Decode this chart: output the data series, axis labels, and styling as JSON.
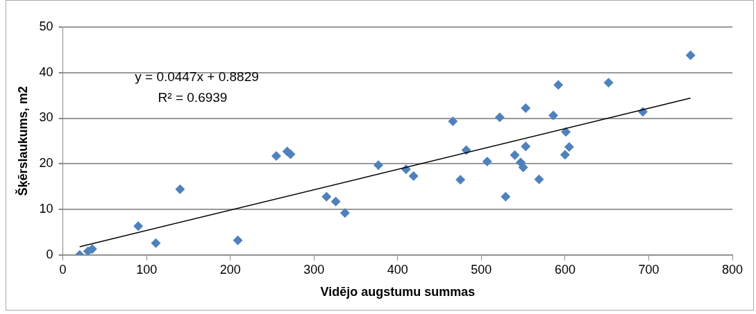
{
  "chart_data": {
    "type": "scatter",
    "xlabel": "Vidējo augstumu summas",
    "ylabel": "Šķērslaukums, m2",
    "xlim": [
      0,
      800
    ],
    "xticks": [
      0,
      100,
      200,
      300,
      400,
      500,
      600,
      700,
      800
    ],
    "ylim": [
      0,
      50
    ],
    "yticks": [
      0,
      10,
      20,
      30,
      40,
      50
    ],
    "grid": "y",
    "legend": false,
    "marker": "diamond",
    "annotations": [
      "y = 0.0447x + 0.8829",
      "R² = 0.6939"
    ],
    "series": [
      {
        "color": "#4f81bd",
        "x": [
          20,
          30,
          35,
          90,
          111,
          140,
          209,
          255,
          268,
          272,
          315,
          326,
          337,
          377,
          410,
          419,
          466,
          475,
          482,
          507,
          522,
          529,
          540,
          547,
          550,
          553,
          553,
          569,
          586,
          592,
          600,
          601,
          605,
          652,
          693,
          750
        ],
        "values": [
          0,
          0.8,
          1.3,
          6.3,
          2.6,
          14.4,
          3.2,
          21.7,
          22.7,
          22.1,
          12.8,
          11.7,
          9.2,
          19.7,
          18.8,
          17.3,
          29.3,
          16.5,
          23,
          20.5,
          30.2,
          12.8,
          21.9,
          20.3,
          19.2,
          23.8,
          32.2,
          16.6,
          30.6,
          37.3,
          22,
          27,
          23.7,
          37.8,
          31.4,
          43.8
        ]
      },
      {
        "type": "line",
        "color": "#000000",
        "x": [
          20,
          750
        ],
        "values": [
          1.8,
          34.4
        ],
        "marker": "none"
      }
    ]
  }
}
